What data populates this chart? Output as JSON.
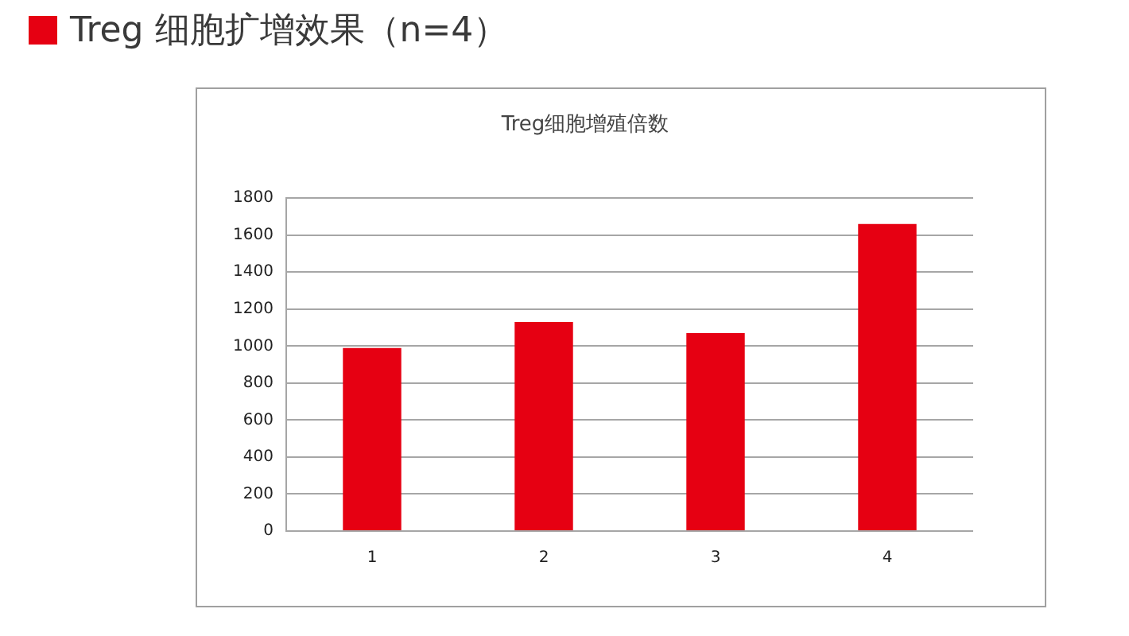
{
  "chart_data": {
    "type": "bar",
    "title": "Treg 细胞扩增效果（n=4）",
    "subtitle": "Treg细胞增殖倍数",
    "categories": [
      "1",
      "2",
      "3",
      "4"
    ],
    "values": [
      990,
      1130,
      1070,
      1660
    ],
    "color": "#e60012",
    "ylim": [
      0,
      1800
    ],
    "yticks": [
      0,
      200,
      400,
      600,
      800,
      1000,
      1200,
      1400,
      1600,
      1800
    ],
    "grid": "y"
  }
}
